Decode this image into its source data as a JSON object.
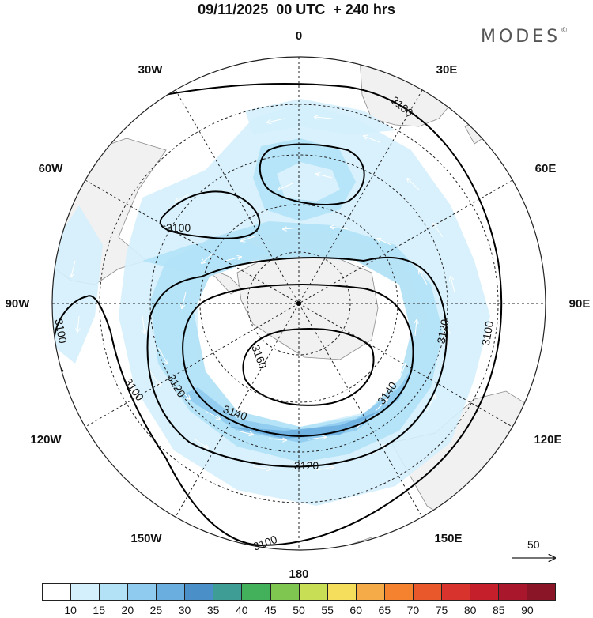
{
  "header": {
    "title": "09/11/2025  00 UTC  + 240 hrs",
    "brand": "MODES",
    "brand_mark": "©"
  },
  "map": {
    "projection": "south-polar-stereographic",
    "longitude_labels": [
      "0",
      "30E",
      "60E",
      "90E",
      "120E",
      "150E",
      "180",
      "150W",
      "120W",
      "90W",
      "60W",
      "30W"
    ],
    "contour_labels": [
      "3100",
      "3100",
      "3100",
      "3100",
      "3100",
      "3100",
      "3120",
      "3120",
      "3120",
      "3140",
      "3140",
      "3160"
    ],
    "reference_vector_label": "50",
    "colors": {
      "land": "#f1f1f1",
      "coast": "#8a8a8a",
      "contour": "#000000",
      "grid": "#222222",
      "vector": "#ffffff"
    }
  },
  "colorbar": {
    "colors": [
      "#ffffff",
      "#d4f0fc",
      "#b3e2f7",
      "#8fcbef",
      "#6aaedf",
      "#4a8fc8",
      "#3e9e96",
      "#43b05b",
      "#7ec64f",
      "#c7de55",
      "#f5de5b",
      "#f6ab49",
      "#f4822f",
      "#e9582b",
      "#d8332c",
      "#c41f2b",
      "#a8172b",
      "#8a1526"
    ],
    "labels": [
      "10",
      "15",
      "20",
      "25",
      "30",
      "35",
      "40",
      "45",
      "50",
      "55",
      "60",
      "65",
      "70",
      "75",
      "80",
      "85",
      "90"
    ]
  }
}
